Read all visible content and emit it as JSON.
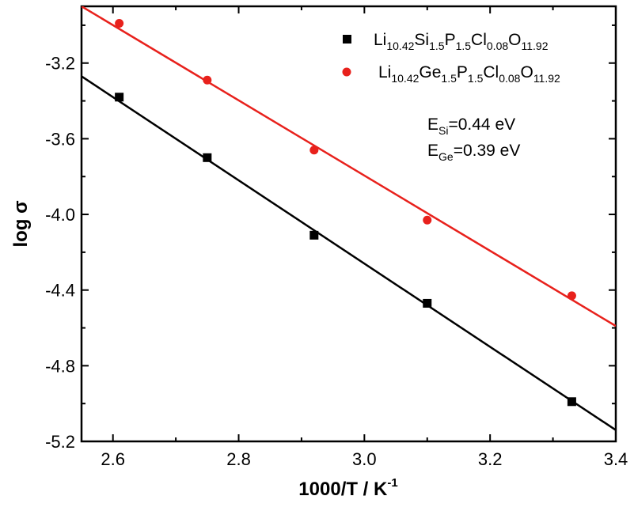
{
  "chart_data": {
    "type": "scatter",
    "xlabel": "1000/T / K",
    "xlabel_sup": "-1",
    "ylabel": "log σ",
    "xlim": [
      2.55,
      3.4
    ],
    "ylim": [
      -5.2,
      -2.9
    ],
    "xticks": [
      2.6,
      2.8,
      3.0,
      3.2,
      3.4
    ],
    "xtick_labels": [
      "2.6",
      "2.8",
      "3.0",
      "3.2",
      "3.4"
    ],
    "yticks": [
      -3.2,
      -3.6,
      -4.0,
      -4.4,
      -4.8,
      -5.2
    ],
    "ytick_labels": [
      "-3.2",
      "-3.6",
      "-4.0",
      "-4.4",
      "-4.8",
      "-5.2"
    ],
    "grid": false,
    "legend_position": "top-right",
    "series": [
      {
        "name_parts": [
          {
            "t": "Li",
            "sub": false
          },
          {
            "t": "10.42",
            "sub": true
          },
          {
            "t": "Si",
            "sub": false
          },
          {
            "t": "1.5",
            "sub": true
          },
          {
            "t": "P",
            "sub": false
          },
          {
            "t": "1.5",
            "sub": true
          },
          {
            "t": "Cl",
            "sub": false
          },
          {
            "t": "0.08",
            "sub": true
          },
          {
            "t": "O",
            "sub": false
          },
          {
            "t": "11.92",
            "sub": true
          }
        ],
        "marker": "square",
        "color": "#000000",
        "x": [
          2.61,
          2.75,
          2.92,
          3.1,
          3.33
        ],
        "y": [
          -3.38,
          -3.7,
          -4.11,
          -4.47,
          -4.99
        ],
        "fit": {
          "x": [
            2.55,
            3.4
          ],
          "y": [
            -3.27,
            -5.14
          ]
        }
      },
      {
        "name_parts": [
          {
            "t": "Li",
            "sub": false
          },
          {
            "t": "10.42",
            "sub": true
          },
          {
            "t": "Ge",
            "sub": false
          },
          {
            "t": "1.5",
            "sub": true
          },
          {
            "t": "P",
            "sub": false
          },
          {
            "t": "1.5",
            "sub": true
          },
          {
            "t": "Cl",
            "sub": false
          },
          {
            "t": "0.08",
            "sub": true
          },
          {
            "t": "O",
            "sub": false
          },
          {
            "t": "11.92",
            "sub": true
          }
        ],
        "marker": "circle",
        "color": "#e8211c",
        "x": [
          2.61,
          2.75,
          2.92,
          3.1,
          3.33
        ],
        "y": [
          -2.99,
          -3.29,
          -3.66,
          -4.03,
          -4.43
        ],
        "fit": {
          "x": [
            2.55,
            3.4
          ],
          "y": [
            -2.9,
            -4.59
          ]
        }
      }
    ],
    "annotations": [
      {
        "main": "E",
        "sub": "Si",
        "rest": "=0.44 eV"
      },
      {
        "main": "E",
        "sub": "Ge",
        "rest": "=0.39 eV"
      }
    ]
  }
}
